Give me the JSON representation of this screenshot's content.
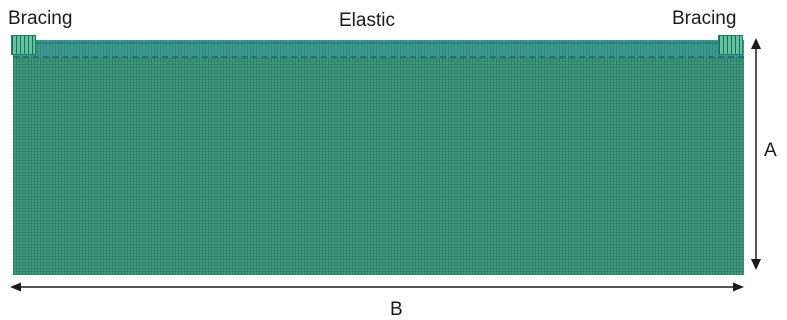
{
  "labels": {
    "bracing_left": "Bracing",
    "elastic": "Elastic",
    "bracing_right": "Bracing",
    "dimension_a": "A",
    "dimension_b": "B"
  },
  "colors": {
    "mesh": "#3f9a7d",
    "elastic_band": "#3a9b8e",
    "bracing": "#5fc4a0",
    "dimension_lines": "#1a1a1a"
  }
}
